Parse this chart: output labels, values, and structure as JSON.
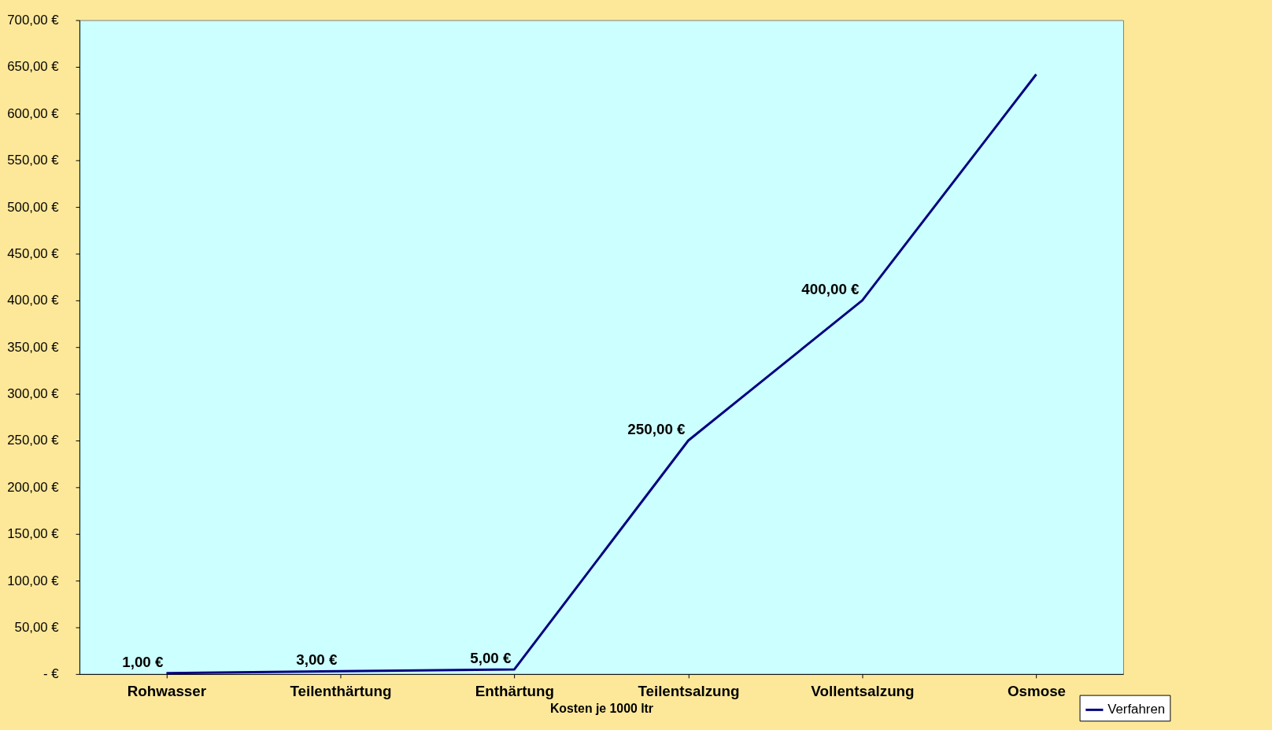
{
  "chart_data": {
    "type": "line",
    "xlabel": "Kosten je 1000 ltr",
    "categories": [
      "Rohwasser",
      "Teilenthärtung",
      "Enthärtung",
      "Teilentsalzung",
      "Vollentsalzung",
      "Osmose"
    ],
    "series": [
      {
        "name": "Verfahren",
        "color": "#000080",
        "values": [
          1,
          3,
          5,
          250,
          400,
          642
        ],
        "value_labels": [
          "1,00 €",
          "3,00 €",
          "5,00 €",
          "250,00 €",
          "400,00 €",
          null
        ]
      }
    ],
    "ylim": [
      0,
      700
    ],
    "yticks": [
      {
        "value": 0,
        "label": "-   €"
      },
      {
        "value": 50,
        "label": "50,00 €"
      },
      {
        "value": 100,
        "label": "100,00 €"
      },
      {
        "value": 150,
        "label": "150,00 €"
      },
      {
        "value": 200,
        "label": "200,00 €"
      },
      {
        "value": 250,
        "label": "250,00 €"
      },
      {
        "value": 300,
        "label": "300,00 €"
      },
      {
        "value": 350,
        "label": "350,00 €"
      },
      {
        "value": 400,
        "label": "400,00 €"
      },
      {
        "value": 450,
        "label": "450,00 €"
      },
      {
        "value": 500,
        "label": "500,00 €"
      },
      {
        "value": 550,
        "label": "550,00 €"
      },
      {
        "value": 600,
        "label": "600,00 €"
      },
      {
        "value": 650,
        "label": "650,00 €"
      },
      {
        "value": 700,
        "label": "700,00 €"
      }
    ],
    "legend": "bottom right",
    "grid": false,
    "marker": "none",
    "line_style": "solid"
  }
}
